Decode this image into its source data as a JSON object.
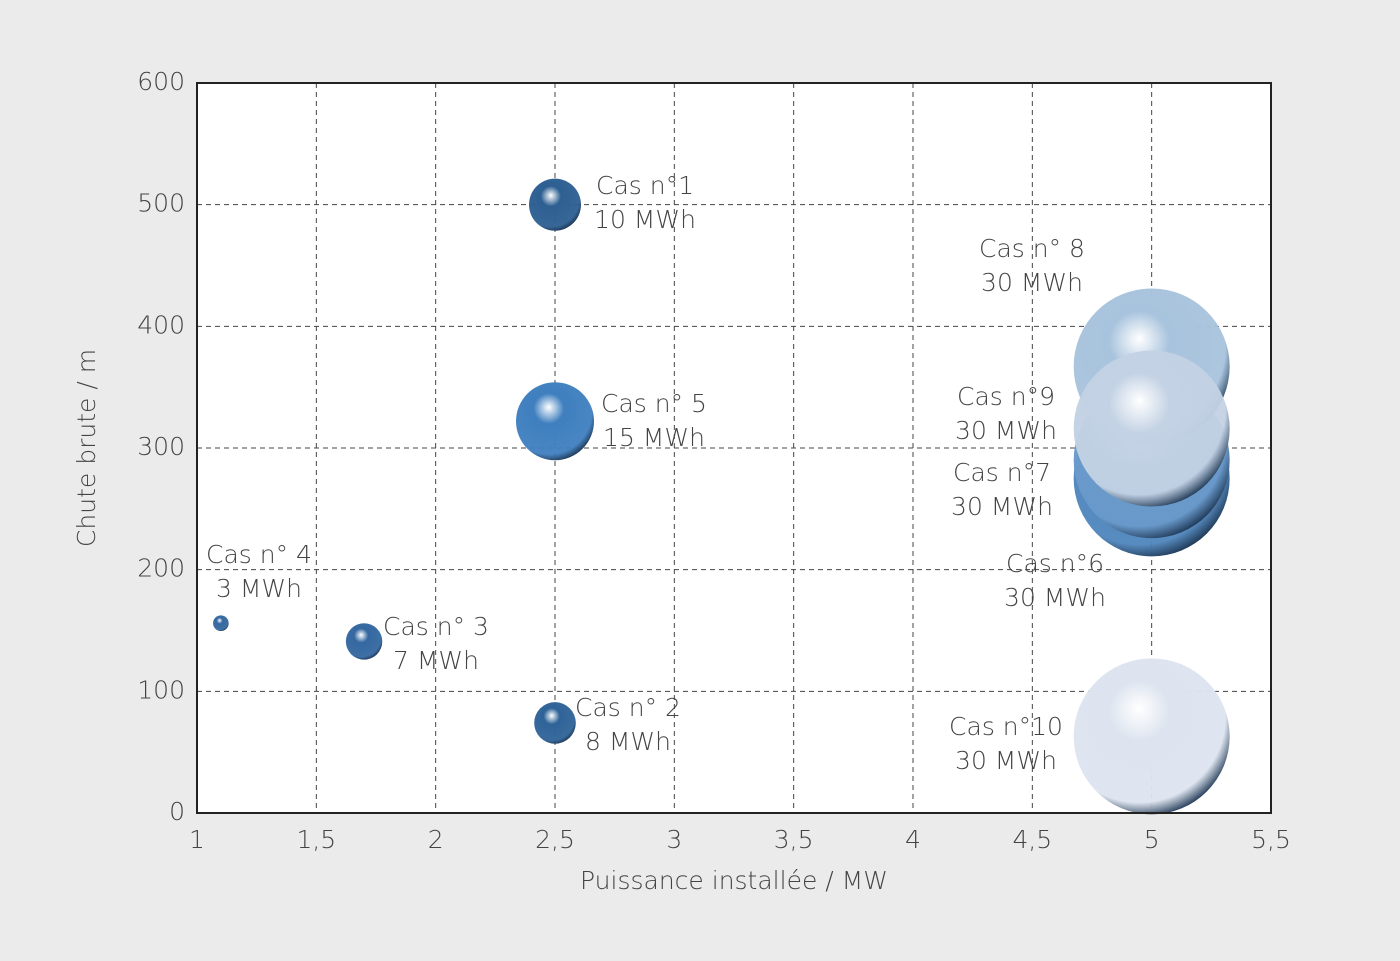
{
  "chart_data": {
    "type": "bubble",
    "xlabel": "Puissance installée / MW",
    "ylabel": "Chute brute / m",
    "names": [
      "Cas n°1",
      "Cas n° 2",
      "Cas n° 3",
      "Cas n° 4",
      "Cas n° 5",
      "Cas n°6",
      "Cas n°7",
      "Cas n° 8",
      "Cas n°9",
      "Cas n°10"
    ],
    "x": [
      2.5,
      2.5,
      1.7,
      1.1,
      2.5,
      5,
      5,
      5,
      5,
      5
    ],
    "values": [
      500,
      74,
      141,
      156,
      322,
      275,
      290,
      367,
      316,
      63
    ],
    "sizes": [
      10,
      8,
      7,
      3,
      15,
      30,
      30,
      30,
      30,
      30
    ],
    "size_labels": [
      "10 MWh",
      "8 MWh",
      "7 MWh",
      "3 MWh",
      "15 MWh",
      "30 MWh",
      "30 MWh",
      "30 MWh",
      "30 MWh",
      "30 MWh"
    ],
    "colors": [
      "#2d5f92",
      "#2f6398",
      "#3468a0",
      "#3669a0",
      "#3f7fbf",
      "#4f86bd",
      "#6a9acb",
      "#a8c3dd",
      "#c3d2e4",
      "#dde4ef"
    ],
    "xlim": [
      1,
      5.5
    ],
    "xticks": [
      1,
      {
        "value": 1.5,
        "label": "1,5"
      },
      2,
      {
        "value": 2.5,
        "label": "2,5"
      },
      3,
      {
        "value": 3.5,
        "label": "3,5"
      },
      4,
      {
        "value": 4.5,
        "label": "4,5"
      },
      5,
      {
        "value": 5.5,
        "label": "5,5"
      }
    ],
    "ylim": [
      0,
      600
    ],
    "yticks": [
      0,
      100,
      200,
      300,
      400,
      500,
      600
    ],
    "grid": true
  }
}
